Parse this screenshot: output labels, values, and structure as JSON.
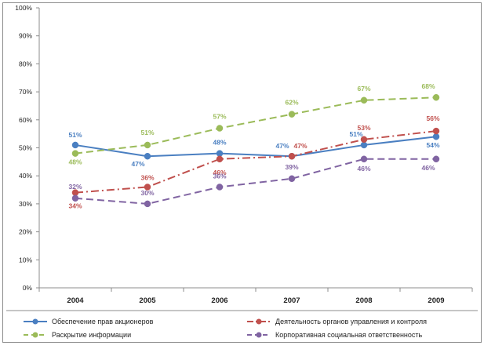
{
  "chart_data": {
    "type": "line",
    "categories": [
      "2004",
      "2005",
      "2006",
      "2007",
      "2008",
      "2009"
    ],
    "ylim": [
      0,
      100
    ],
    "yticks": [
      "0%",
      "10%",
      "20%",
      "30%",
      "40%",
      "50%",
      "60%",
      "70%",
      "80%",
      "90%",
      "100%"
    ],
    "grid": false,
    "legend_position": "bottom",
    "series": [
      {
        "name": "Обеспечение прав акционеров",
        "color": "#4a7fc1",
        "dash": "solid",
        "values": [
          51,
          47,
          48,
          47,
          51,
          54
        ],
        "labels": [
          "51%",
          "47%",
          "48%",
          "47%",
          "51%",
          "54%"
        ]
      },
      {
        "name": "Деятельность органов управления и контроля",
        "color": "#c0504d",
        "dash": "dashdot",
        "values": [
          34,
          36,
          46,
          47,
          53,
          56
        ],
        "labels": [
          "34%",
          "36%",
          "46%",
          "47%",
          "53%",
          "56%"
        ]
      },
      {
        "name": "Раскрытие информации",
        "color": "#9bbb59",
        "dash": "dash",
        "values": [
          48,
          51,
          57,
          62,
          67,
          68
        ],
        "labels": [
          "48%",
          "51%",
          "57%",
          "62%",
          "67%",
          "68%"
        ]
      },
      {
        "name": "Корпоративная социальная ответственность",
        "color": "#8064a2",
        "dash": "dash",
        "values": [
          32,
          30,
          36,
          39,
          46,
          46
        ],
        "labels": [
          "32%",
          "30%",
          "36%",
          "39%",
          "46%",
          "46%"
        ]
      }
    ]
  }
}
